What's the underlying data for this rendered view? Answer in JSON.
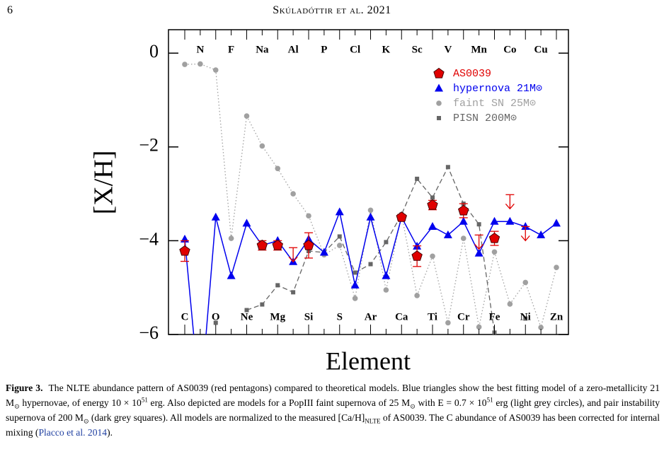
{
  "header": {
    "page": "6",
    "running_title": "Skúladóttir et al. 2021"
  },
  "chart_data": {
    "type": "abundance",
    "xlabel": "Element",
    "ylabel": "[X/H]",
    "categories": [
      "C",
      "N",
      "O",
      "F",
      "Ne",
      "Na",
      "Mg",
      "Al",
      "Si",
      "P",
      "S",
      "Cl",
      "Ar",
      "K",
      "Ca",
      "Sc",
      "Ti",
      "V",
      "Cr",
      "Mn",
      "Fe",
      "Co",
      "Ni",
      "Cu",
      "Zn"
    ],
    "ylim": [
      -6,
      0.5
    ],
    "yticks": [
      {
        "value": 0,
        "label": "0"
      },
      {
        "value": -2,
        "label": "−2"
      },
      {
        "value": -4,
        "label": "−4"
      },
      {
        "value": -6,
        "label": "−6"
      }
    ],
    "legend": "upper right",
    "series": [
      {
        "name": "AS0039",
        "color": "#e00000",
        "marker": "pentagon",
        "line": "none",
        "values": [
          -4.22,
          null,
          null,
          null,
          null,
          -4.1,
          -4.1,
          null,
          -4.1,
          null,
          null,
          null,
          null,
          null,
          -3.5,
          -4.33,
          -3.24,
          null,
          -3.36,
          null,
          -3.95,
          null,
          null,
          null,
          null
        ],
        "errors": [
          0.22,
          null,
          null,
          null,
          null,
          0.1,
          0.1,
          null,
          0.27,
          null,
          null,
          null,
          null,
          null,
          0.06,
          0.22,
          0.1,
          null,
          0.15,
          null,
          0.15,
          null,
          null,
          null,
          null
        ],
        "upper_limits": [
          null,
          null,
          null,
          null,
          null,
          null,
          null,
          -4.45,
          null,
          null,
          null,
          null,
          null,
          null,
          null,
          null,
          null,
          null,
          null,
          -4.18,
          null,
          -3.32,
          -4.0,
          null,
          null
        ]
      },
      {
        "name": "hypernova 21M⊙",
        "color": "#0000ee",
        "marker": "triangle",
        "line": "solid",
        "values": [
          -3.97,
          -7.5,
          -3.5,
          -4.75,
          -3.63,
          -4.1,
          -4.0,
          -4.45,
          -3.97,
          -4.25,
          -3.39,
          -4.95,
          -3.5,
          -4.75,
          -3.5,
          -4.12,
          -3.7,
          -3.88,
          -3.59,
          -4.27,
          -3.59,
          -3.59,
          -3.7,
          -3.88,
          -3.63
        ]
      },
      {
        "name": "faint SN 25M⊙",
        "color": "#a0a0a0",
        "marker": "circle",
        "line": "dotted",
        "values": [
          -0.24,
          -0.23,
          -0.36,
          -3.95,
          -1.34,
          -1.98,
          -2.46,
          -3.0,
          -3.47,
          -4.3,
          -4.1,
          -5.23,
          -3.35,
          -5.05,
          -3.44,
          -5.17,
          -4.33,
          -5.75,
          -3.95,
          -5.84,
          -4.24,
          -5.35,
          -4.89,
          -5.85,
          -4.57
        ]
      },
      {
        "name": "PISN 200M⊙",
        "color": "#666666",
        "marker": "square",
        "line": "dashed",
        "values": [
          null,
          null,
          -5.75,
          null,
          -5.48,
          -5.36,
          -4.95,
          -5.1,
          -4.22,
          -4.25,
          -3.91,
          -4.68,
          -4.5,
          -4.03,
          -3.44,
          -2.68,
          -3.08,
          -2.43,
          -3.21,
          -3.65,
          -5.96,
          null,
          -5.66,
          null,
          null
        ]
      }
    ]
  },
  "caption": {
    "label": "Figure 3.",
    "parts": [
      "The NLTE abundance pattern of AS0039 (red pentagons) compared to theoretical models. Blue triangles show the best fitting model of a zero-metallicity 21 M",
      "⊙",
      " hypernovae, of energy 10 × 10",
      "51",
      " erg. Also depicted are models for a PopIII faint supernova of 25 M",
      "⊙",
      " with E = 0.7 × 10",
      "51",
      " erg (light grey circles), and pair instability supernova of 200 M",
      "⊙",
      " (dark grey squares). All models are normalized to the measured [Ca/H]",
      "NLTE",
      " of AS0039. The C abundance of AS0039 has been corrected for internal mixing (",
      "Placco et al. 2014",
      ")."
    ]
  }
}
